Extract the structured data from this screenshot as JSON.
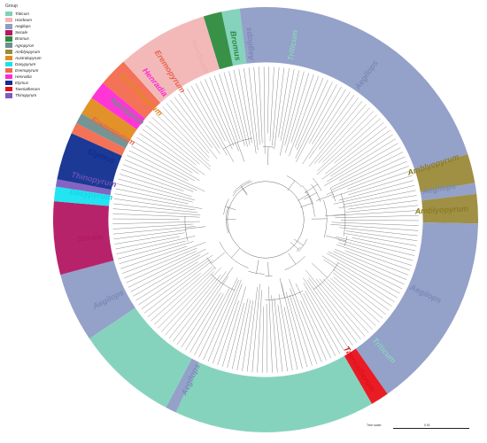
{
  "legend": {
    "title": "Group",
    "items": [
      {
        "name": "Triticum",
        "color": "#7fd1b9"
      },
      {
        "name": "Hordeum",
        "color": "#f2b5b5"
      },
      {
        "name": "Aegilops",
        "color": "#8e9cc6"
      },
      {
        "name": "Secale",
        "color": "#b31763"
      },
      {
        "name": "Bromus",
        "color": "#2e8b3e"
      },
      {
        "name": "Agropyron",
        "color": "#6e8f8f"
      },
      {
        "name": "Amblyopyrum",
        "color": "#9a8a3a"
      },
      {
        "name": "Australopyrum",
        "color": "#e08c1e"
      },
      {
        "name": "Dasypyrum",
        "color": "#17e3f0"
      },
      {
        "name": "Eremopyrum",
        "color": "#f26a4f"
      },
      {
        "name": "Henradia",
        "color": "#ff2ad4"
      },
      {
        "name": "Elymus",
        "color": "#0f2e8f"
      },
      {
        "name": "Taeniatherum",
        "color": "#e8101a"
      },
      {
        "name": "Thinopyrum",
        "color": "#7d5bbf"
      }
    ]
  },
  "sectors": [
    {
      "group": "Triticum",
      "start": -12,
      "end": -7,
      "color": "#7fd1b9",
      "label": "Triticum",
      "label_color": "#8ad1bc",
      "inner": 0.74
    },
    {
      "group": "Aegilops",
      "start": -7,
      "end": 72,
      "color": "#8e9cc6",
      "label": "Aegilops",
      "label_color": "#7b8ab6",
      "inner": 0.74
    },
    {
      "group": "Amblyopyrum",
      "start": 72,
      "end": 80,
      "color": "#9a8a3a",
      "label": "Amblyopyrum",
      "label_color": "#8d7c22",
      "inner": 0.74
    },
    {
      "group": "Aegilops",
      "start": 80,
      "end": 83,
      "color": "#8e9cc6",
      "label": "Aegilops",
      "label_color": "#7b8ab6",
      "inner": 0.74
    },
    {
      "group": "Amblyopyrum",
      "start": 83,
      "end": 91,
      "color": "#9a8a3a",
      "label": "Amblyopyrum",
      "label_color": "#8d7c22",
      "inner": 0.74
    },
    {
      "group": "Aegilops",
      "start": 91,
      "end": 145,
      "color": "#8e9cc6",
      "label": "Aegilops",
      "label_color": "#7b8ab6",
      "inner": 0.74
    },
    {
      "group": "Taeniatherum",
      "start": 145,
      "end": 150,
      "color": "#e8101a",
      "label": "Taeniatherum",
      "label_color": "#e01018",
      "inner": 0.74
    },
    {
      "group": "Triticum",
      "start": 150,
      "end": 205,
      "color": "#7fd1b9",
      "label": "Triticum",
      "label_color": "#8ad1bc",
      "inner": 0.74
    },
    {
      "group": "Aegilops",
      "start": 205,
      "end": 208,
      "color": "#8e9cc6",
      "label": "Aegilops",
      "label_color": "#7b8ab6",
      "inner": 0.74
    },
    {
      "group": "Triticum",
      "start": 208,
      "end": 236,
      "color": "#7fd1b9",
      "label": "Triticum",
      "label_color": "#8ad1bc",
      "inner": 0.74
    },
    {
      "group": "Aegilops",
      "start": 236,
      "end": 255,
      "color": "#8e9cc6",
      "label": "Aegilops",
      "label_color": "#7b8ab6",
      "inner": 0.74
    },
    {
      "group": "Secale",
      "start": 255,
      "end": 275,
      "color": "#b31763",
      "label": "Secale",
      "label_color": "#b31763",
      "inner": 0.74
    },
    {
      "group": "Dasypyrum",
      "start": 275,
      "end": 279,
      "color": "#17e3f0",
      "label": "Dasypyrum",
      "label_color": "#17d5e8",
      "inner": 0.74
    },
    {
      "group": "Thinopyrum",
      "start": 279,
      "end": 281,
      "color": "#7d5bbf",
      "label": "Thinopyrum",
      "label_color": "#6a4fb0",
      "inner": 0.74
    },
    {
      "group": "Elymus",
      "start": 281,
      "end": 294,
      "color": "#0f2e8f",
      "label": "Elymus",
      "label_color": "#0f2e8f",
      "inner": 0.74
    },
    {
      "group": "Eremopyrum",
      "start": 294,
      "end": 297,
      "color": "#f26a4f",
      "label": "Eremopyrum",
      "label_color": "#e8634a",
      "inner": 0.74
    },
    {
      "group": "Agropyron",
      "start": 297,
      "end": 300,
      "color": "#6e8f8f",
      "label": "Agropyron",
      "label_color": "#6e8f8f",
      "inner": 0.74
    },
    {
      "group": "Australopyrum",
      "start": 300,
      "end": 305,
      "color": "#e08c1e",
      "label": "Australopyrum",
      "label_color": "#e08c1e",
      "inner": 0.74
    },
    {
      "group": "Henradia",
      "start": 305,
      "end": 310,
      "color": "#ff2ad4",
      "label": "Henradia",
      "label_color": "#ff2ad4",
      "inner": 0.74
    },
    {
      "group": "Eremopyrum",
      "start": 310,
      "end": 318,
      "color": "#f26a4f",
      "label": "Eremopyrum",
      "label_color": "#e8634a",
      "inner": 0.74
    },
    {
      "group": "Hordeum",
      "start": 318,
      "end": 343,
      "color": "#f2b5b5",
      "label": "Hordeum",
      "label_color": "#efb0b0",
      "inner": 0.74
    },
    {
      "group": "Bromus",
      "start": 343,
      "end": 348,
      "color": "#2e8b3e",
      "label": "Bromus",
      "label_color": "#2e8b3e",
      "inner": 0.74
    }
  ],
  "outer_labels": [
    {
      "text": "Aegilops",
      "angle": -5,
      "color": "#7b8ab6"
    },
    {
      "text": "Triticum",
      "angle": 9,
      "color": "#8ad1bc"
    },
    {
      "text": "Aegilops",
      "angle": 35,
      "color": "#7b8ab6"
    },
    {
      "text": "Amblyopyrum",
      "angle": 72,
      "color": "#8d7c22"
    },
    {
      "text": "Aegilops",
      "angle": 80,
      "color": "#7b8ab6"
    },
    {
      "text": "Amblyopyrum",
      "angle": 87,
      "color": "#8d7c22"
    },
    {
      "text": "Aegilops",
      "angle": 115,
      "color": "#7b8ab6"
    },
    {
      "text": "Triticum",
      "angle": 138,
      "color": "#8ad1bc"
    },
    {
      "text": "Taeniatherum",
      "angle": 148,
      "color": "#e01018"
    },
    {
      "text": "Triticum",
      "angle": 170,
      "color": "#8ad1bc"
    },
    {
      "text": "Aegilops",
      "angle": 205,
      "color": "#7b8ab6"
    },
    {
      "text": "Triticum",
      "angle": 220,
      "color": "#8ad1bc"
    },
    {
      "text": "Aegilops",
      "angle": 243,
      "color": "#7b8ab6"
    },
    {
      "text": "Secale",
      "angle": 264,
      "color": "#b31763"
    },
    {
      "text": "Dasypyrum",
      "angle": 278,
      "color": "#17d5e8"
    },
    {
      "text": "Thinopyrum",
      "angle": 283,
      "color": "#6a4fb0"
    },
    {
      "text": "Elymus",
      "angle": 291,
      "color": "#0f2e8f"
    },
    {
      "text": "Eremopyrum",
      "angle": 300,
      "color": "#e8634a"
    },
    {
      "text": "Agropyron",
      "angle": 308,
      "color": "#6e8f8f"
    },
    {
      "text": "Australopyrum",
      "angle": 315,
      "color": "#e08c1e"
    },
    {
      "text": "Henradia",
      "angle": 321,
      "color": "#ff2ad4"
    },
    {
      "text": "Eremopyrum",
      "angle": 327,
      "color": "#e8634a"
    },
    {
      "text": "Hordeum",
      "angle": 338,
      "color": "#efb0b0"
    },
    {
      "text": "Bromus",
      "angle": 350,
      "color": "#2e8b3e"
    }
  ],
  "scale": {
    "label": "Tree scale:",
    "value": "0.01"
  }
}
